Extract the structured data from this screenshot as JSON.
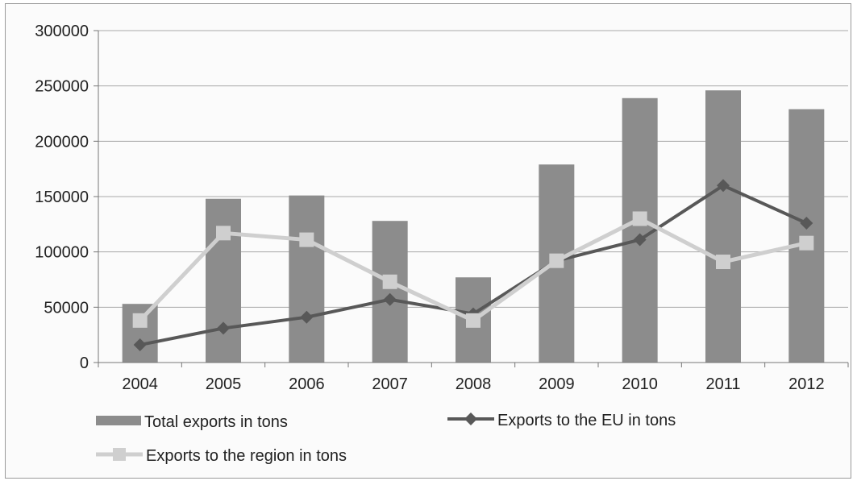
{
  "chart_data": {
    "type": "bar",
    "categories": [
      "2004",
      "2005",
      "2006",
      "2007",
      "2008",
      "2009",
      "2010",
      "2011",
      "2012"
    ],
    "series": [
      {
        "name": "Total exports in tons",
        "kind": "bar",
        "color": "#8c8c8c",
        "values": [
          53000,
          148000,
          151000,
          128000,
          77000,
          179000,
          239000,
          246000,
          229000
        ]
      },
      {
        "name": "Exports to the EU in tons",
        "kind": "line",
        "marker": "diamond",
        "color": "#585858",
        "values": [
          16000,
          31000,
          41000,
          57000,
          44000,
          92000,
          111000,
          160000,
          126000
        ]
      },
      {
        "name": "Exports to the region in tons",
        "kind": "line",
        "marker": "square",
        "color": "#cfcfcf",
        "values": [
          38000,
          117000,
          111000,
          73000,
          38000,
          92000,
          130000,
          91000,
          108000
        ]
      }
    ],
    "ylim": [
      0,
      300000
    ],
    "yticks": [
      0,
      50000,
      100000,
      150000,
      200000,
      250000,
      300000
    ],
    "grid": true,
    "legend_position": "bottom",
    "title": "",
    "xlabel": "",
    "ylabel": ""
  }
}
